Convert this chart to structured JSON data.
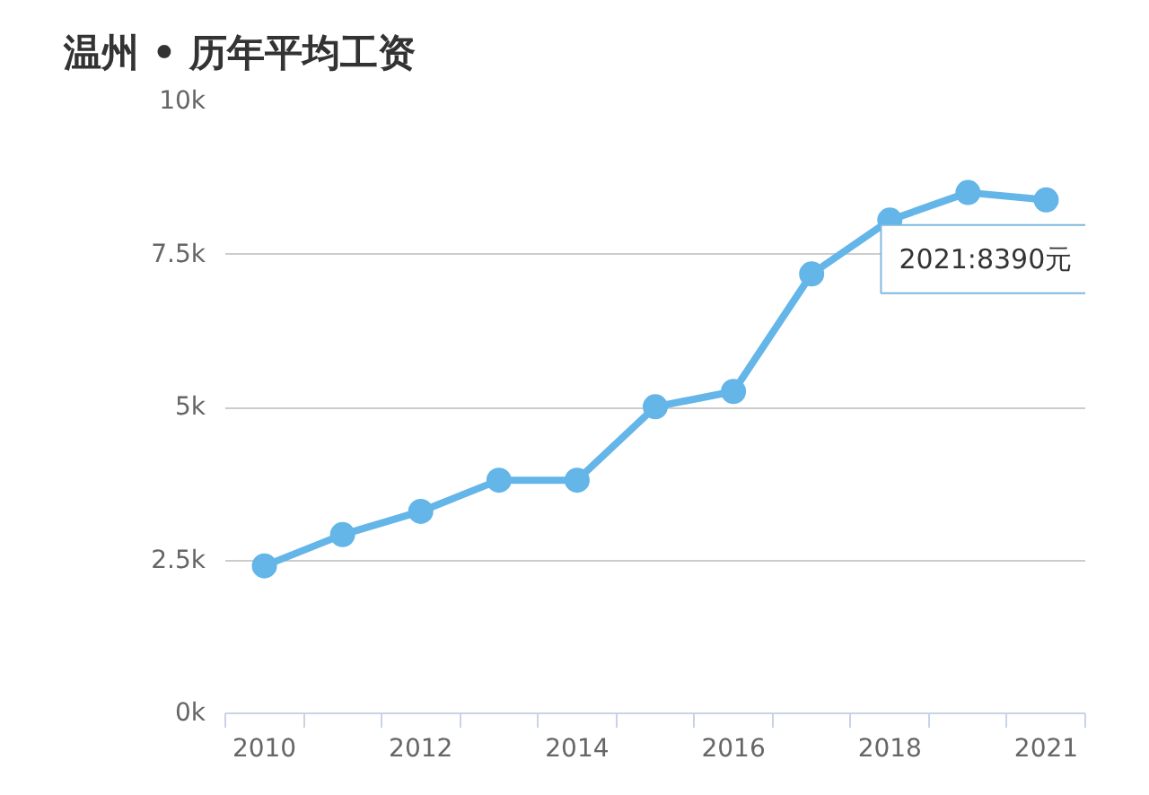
{
  "chart_data": {
    "type": "line",
    "title": "温州 • 历年平均工资",
    "categories": [
      "2010",
      null,
      "2012",
      null,
      "2014",
      null,
      "2016",
      null,
      "2018",
      null,
      "2021"
    ],
    "series": [
      {
        "color": "#64b5e8",
        "values": [
          2410,
          2920,
          3300,
          3810,
          3810,
          5010,
          5260,
          7180,
          8060,
          8510,
          8390
        ]
      }
    ],
    "ylim": [
      0,
      10000
    ],
    "yticks": [
      {
        "value": 0,
        "label": "0k"
      },
      {
        "value": 2500,
        "label": "2.5k"
      },
      {
        "value": 5000,
        "label": "5k"
      },
      {
        "value": 7500,
        "label": "7.5k"
      },
      {
        "value": 10000,
        "label": "10k"
      }
    ],
    "grid": "y",
    "marker": "circle",
    "line_style": "solid",
    "annotations": [
      {
        "text": "2021:8390元",
        "x": "2021",
        "y": 8390
      }
    ]
  }
}
